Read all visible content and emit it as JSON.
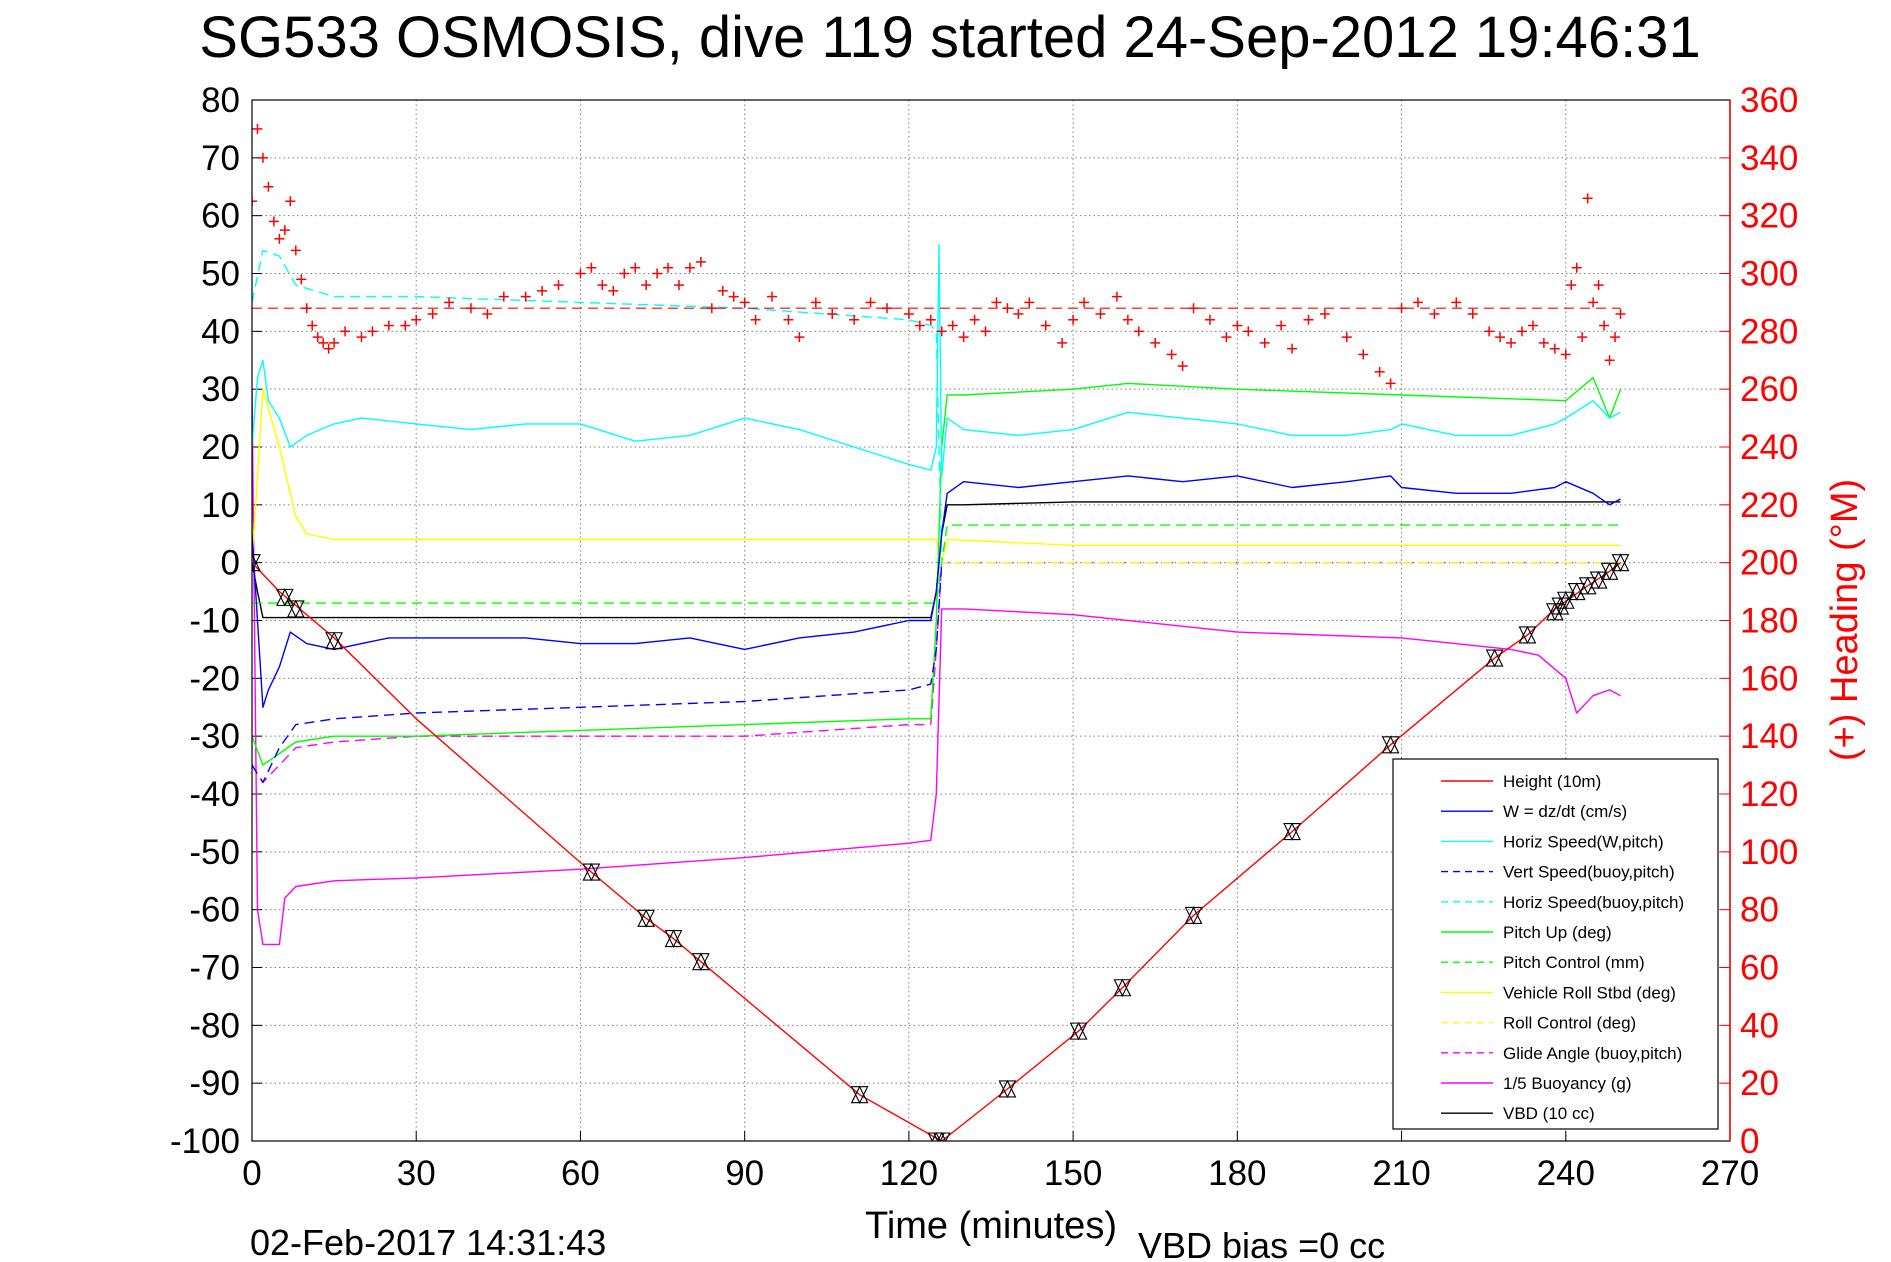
{
  "chart_data": {
    "type": "line",
    "title": "SG533 OSMOSIS, dive 119 started 24-Sep-2012 19:46:31",
    "xlabel": "Time (minutes)",
    "ylabel": "",
    "y2label": "(+) Heading (°M)",
    "xlim": [
      0,
      270
    ],
    "ylim": [
      -100,
      80
    ],
    "y2lim": [
      0,
      360
    ],
    "xticks": [
      0,
      30,
      60,
      90,
      120,
      150,
      180,
      210,
      240,
      270
    ],
    "yticks": [
      80,
      70,
      60,
      50,
      40,
      30,
      20,
      10,
      0,
      -10,
      -20,
      -30,
      -40,
      -50,
      -60,
      -70,
      -80,
      -90,
      -100
    ],
    "y2ticks": [
      360,
      340,
      320,
      300,
      280,
      260,
      240,
      220,
      200,
      180,
      160,
      140,
      120,
      100,
      80,
      60,
      40,
      20,
      0
    ],
    "grid": true,
    "legend_position": "bottom-right",
    "footer_left": "02-Feb-2017 14:31:43",
    "footer_right": "VBD bias =0 cc",
    "series": [
      {
        "name": "Height (10m)",
        "color": "#ff0000",
        "style": "solid",
        "x": [
          0,
          5,
          15,
          30,
          62,
          72,
          77,
          82,
          111,
          125,
          126,
          138,
          151,
          159,
          172,
          190,
          208,
          227,
          233,
          238,
          244,
          248,
          250
        ],
        "y": [
          0,
          -5,
          -13,
          -27,
          -53.5,
          -61.5,
          -65,
          -69,
          -92,
          -99.5,
          -100,
          -91,
          -81,
          -73.5,
          -61,
          -46.5,
          -31.5,
          -16.5,
          -12.5,
          -8,
          -4,
          -1.5,
          0
        ]
      },
      {
        "name": "W = dz/dt (cm/s)",
        "color": "#0000ff",
        "style": "solid",
        "x": [
          0,
          1,
          2,
          3,
          5,
          7,
          10,
          15,
          20,
          25,
          30,
          40,
          50,
          60,
          70,
          80,
          90,
          100,
          110,
          120,
          124,
          125,
          126,
          127,
          130,
          140,
          150,
          160,
          170,
          180,
          190,
          200,
          208,
          210,
          220,
          230,
          238,
          240,
          245,
          248,
          250
        ],
        "y": [
          5,
          -10,
          -25,
          -22,
          -18,
          -12,
          -14,
          -15,
          -14,
          -13,
          -13,
          -13,
          -13,
          -14,
          -14,
          -13,
          -15,
          -13,
          -12,
          -10,
          -10,
          -5,
          5,
          12,
          14,
          13,
          14,
          15,
          14,
          15,
          13,
          14,
          15,
          13,
          12,
          12,
          13,
          14,
          12,
          10,
          11
        ]
      },
      {
        "name": "Horiz Speed(W,pitch)",
        "color": "#00ffff",
        "style": "solid",
        "x": [
          0,
          1,
          2,
          3,
          5,
          7,
          10,
          15,
          20,
          30,
          40,
          50,
          60,
          70,
          80,
          90,
          100,
          110,
          120,
          124,
          125,
          125.5,
          126,
          127,
          130,
          140,
          150,
          160,
          170,
          180,
          190,
          200,
          208,
          210,
          220,
          230,
          238,
          240,
          245,
          248,
          250
        ],
        "y": [
          20,
          32,
          35,
          28,
          25,
          20,
          22,
          24,
          25,
          24,
          23,
          24,
          24,
          21,
          22,
          25,
          23,
          20,
          17,
          16,
          20,
          55,
          15,
          25,
          23,
          22,
          23,
          26,
          25,
          24,
          22,
          22,
          23,
          24,
          22,
          22,
          24,
          25,
          28,
          25,
          26
        ]
      },
      {
        "name": "Vert Speed(buoy,pitch)",
        "color": "#0000ff",
        "style": "dashed",
        "x": [
          0,
          2,
          5,
          8,
          15,
          30,
          60,
          90,
          120,
          124,
          125,
          126
        ],
        "y": [
          -35,
          -38,
          -32,
          -28,
          -27,
          -26,
          -25,
          -24,
          -22,
          -21,
          -15,
          0
        ]
      },
      {
        "name": "Horiz Speed(buoy,pitch)",
        "color": "#00ffff",
        "style": "dashed",
        "x": [
          0,
          2,
          5,
          8,
          15,
          30,
          60,
          90,
          120,
          124,
          125,
          126
        ],
        "y": [
          45,
          54,
          53,
          48,
          46,
          46,
          45,
          44,
          42,
          41,
          40,
          0
        ]
      },
      {
        "name": "Pitch Up (deg)",
        "color": "#00ff00",
        "style": "solid",
        "x": [
          0,
          2,
          5,
          8,
          15,
          30,
          60,
          90,
          120,
          124,
          125,
          126,
          127,
          130,
          150,
          160,
          180,
          210,
          240,
          245,
          248,
          250
        ],
        "y": [
          -30,
          -35,
          -33,
          -31,
          -30,
          -30,
          -29,
          -28,
          -27,
          -27,
          -10,
          20,
          29,
          29,
          30,
          31,
          30,
          29,
          28,
          32,
          25,
          30
        ]
      },
      {
        "name": "Pitch Control (mm)",
        "color": "#00ff00",
        "style": "dashed",
        "x": [
          0,
          5,
          15,
          30,
          60,
          90,
          120,
          125,
          126,
          127,
          150,
          180,
          210,
          240,
          250
        ],
        "y": [
          -7,
          -7,
          -7,
          -7,
          -7,
          -7,
          -7,
          -7,
          0,
          6.5,
          6.5,
          6.5,
          6.5,
          6.5,
          6.5
        ]
      },
      {
        "name": "Vehicle Roll Stbd (deg)",
        "color": "#ffff00",
        "style": "solid",
        "x": [
          0,
          2,
          5,
          8,
          10,
          15,
          30,
          60,
          90,
          120,
          125,
          126,
          127,
          150,
          180,
          210,
          240,
          250
        ],
        "y": [
          0,
          30,
          20,
          8,
          5,
          4,
          4,
          4,
          4,
          4,
          4,
          0,
          4,
          3,
          3,
          3,
          3,
          3
        ]
      },
      {
        "name": "Roll Control (deg)",
        "color": "#ffff00",
        "style": "dashed",
        "x": [
          0,
          2,
          5,
          8,
          10,
          15,
          30,
          60,
          90,
          120,
          125,
          126,
          127,
          150,
          180,
          210,
          240,
          250
        ],
        "y": [
          0,
          30,
          20,
          8,
          5,
          4,
          4,
          4,
          4,
          4,
          4,
          0,
          0,
          0,
          0,
          0,
          0,
          0
        ]
      },
      {
        "name": "Glide Angle (buoy,pitch)",
        "color": "#ff00ff",
        "style": "dashed",
        "x": [
          0,
          2,
          5,
          8,
          15,
          30,
          60,
          90,
          120,
          124,
          125,
          126,
          127,
          150,
          180,
          210,
          240,
          250
        ],
        "y": [
          -35,
          -38,
          -35,
          -32,
          -31,
          -30,
          -30,
          -30,
          -28,
          -28,
          -15,
          0,
          0,
          0,
          0,
          0,
          0,
          0
        ]
      },
      {
        "name": "1/5 Buoyancy (g)",
        "color": "#ff00ff",
        "style": "solid",
        "x": [
          0,
          1,
          2,
          5,
          6,
          8,
          15,
          30,
          60,
          90,
          120,
          124,
          125,
          126,
          127,
          130,
          150,
          180,
          210,
          230,
          235,
          240,
          242,
          245,
          248,
          250
        ],
        "y": [
          30,
          -60,
          -66,
          -66,
          -58,
          -56,
          -55,
          -54.5,
          -53,
          -51,
          -48.5,
          -48,
          -40,
          -8,
          -8,
          -8,
          -9,
          -12,
          -13,
          -15,
          -16,
          -20,
          -26,
          -23,
          -22,
          -23
        ]
      },
      {
        "name": "VBD (10 cc)",
        "color": "#000000",
        "style": "solid",
        "x": [
          0,
          1,
          2,
          5,
          10,
          15,
          30,
          60,
          90,
          120,
          124,
          125,
          126,
          127,
          130,
          150,
          180,
          210,
          240,
          248,
          250
        ],
        "y": [
          0,
          -5,
          -9.5,
          -9.5,
          -9.5,
          -9.5,
          -9.5,
          -9.5,
          -9.5,
          -9.5,
          -9.5,
          -5,
          5,
          10,
          10,
          10.5,
          10.5,
          10.5,
          10.5,
          10.5,
          10.5
        ]
      }
    ],
    "heading_series": {
      "name": "(+) Heading",
      "color": "#ff0000",
      "marker": "+",
      "axis": "right",
      "x": [
        0,
        1,
        2,
        3,
        4,
        5,
        6,
        7,
        8,
        9,
        10,
        11,
        12,
        13,
        14,
        15,
        17,
        20,
        22,
        25,
        28,
        30,
        33,
        36,
        40,
        43,
        46,
        50,
        53,
        56,
        60,
        62,
        64,
        66,
        68,
        70,
        72,
        74,
        76,
        78,
        80,
        82,
        84,
        86,
        88,
        90,
        92,
        95,
        98,
        100,
        103,
        106,
        110,
        113,
        116,
        120,
        122,
        124,
        126,
        128,
        130,
        132,
        134,
        136,
        138,
        140,
        142,
        145,
        148,
        150,
        152,
        155,
        158,
        160,
        162,
        165,
        168,
        170,
        172,
        175,
        178,
        180,
        182,
        185,
        188,
        190,
        193,
        196,
        200,
        203,
        206,
        208,
        210,
        213,
        216,
        220,
        223,
        226,
        228,
        230,
        232,
        234,
        236,
        238,
        240,
        241,
        242,
        243,
        244,
        245,
        246,
        247,
        248,
        249,
        250
      ],
      "y": [
        325,
        350,
        340,
        330,
        318,
        312,
        315,
        325,
        308,
        298,
        288,
        282,
        278,
        276,
        274,
        276,
        280,
        278,
        280,
        282,
        282,
        284,
        286,
        290,
        288,
        286,
        292,
        292,
        294,
        296,
        300,
        302,
        296,
        294,
        300,
        302,
        296,
        300,
        302,
        296,
        302,
        304,
        288,
        294,
        292,
        290,
        284,
        292,
        284,
        278,
        290,
        286,
        284,
        290,
        288,
        286,
        282,
        284,
        280,
        282,
        278,
        284,
        280,
        290,
        288,
        286,
        290,
        282,
        276,
        284,
        290,
        286,
        292,
        284,
        280,
        276,
        272,
        268,
        288,
        284,
        278,
        282,
        280,
        276,
        282,
        274,
        284,
        286,
        278,
        272,
        266,
        262,
        288,
        290,
        286,
        290,
        286,
        280,
        278,
        276,
        280,
        282,
        276,
        274,
        272,
        296,
        302,
        278,
        326,
        290,
        296,
        282,
        270,
        278,
        286
      ]
    },
    "heading_target": 288,
    "markers": {
      "description": "",
      "x": [
        0,
        6,
        8,
        15,
        62,
        72,
        77,
        82,
        111,
        125,
        126,
        138,
        151,
        159,
        172,
        190,
        208,
        227,
        233,
        238,
        239,
        240,
        242,
        244,
        246,
        248,
        250
      ],
      "y": [
        0,
        -6,
        -8,
        -13.5,
        -53.5,
        -61.5,
        -65,
        -69,
        -92,
        -100,
        -100,
        -91,
        -81,
        -73.5,
        -61,
        -46.5,
        -31.5,
        -16.5,
        -12.5,
        -8.5,
        -7.5,
        -6.5,
        -5,
        -4,
        -3,
        -1.5,
        0
      ]
    }
  }
}
